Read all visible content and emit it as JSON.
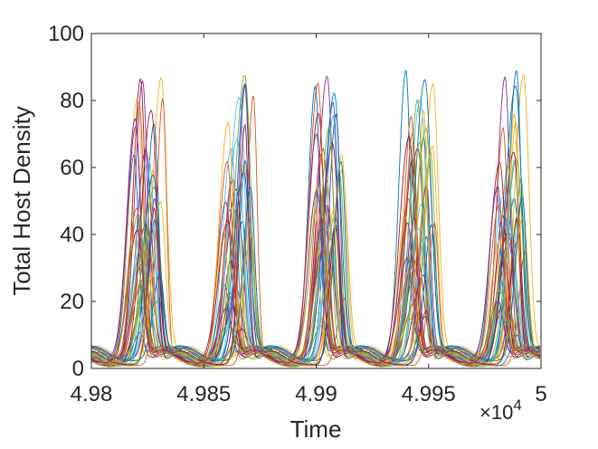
{
  "chart_data": {
    "type": "line",
    "title": "",
    "xlabel": "Time",
    "ylabel": "Total Host Density",
    "x_multiplier_label": "×10",
    "x_multiplier_exponent": "4",
    "xlim": [
      49800,
      50000
    ],
    "ylim": [
      0,
      100
    ],
    "xticks": [
      49800,
      49850,
      49900,
      49950,
      50000
    ],
    "xtick_labels": [
      "4.98",
      "4.985",
      "4.99",
      "4.995",
      "5"
    ],
    "yticks": [
      0,
      20,
      40,
      60,
      80,
      100
    ],
    "ytick_labels": [
      "0",
      "20",
      "40",
      "60",
      "80",
      "100"
    ],
    "grid": false,
    "legend": "none",
    "approx_cycle_period": 40,
    "approx_first_peak_time": 49822,
    "approx_peak_range": [
      8,
      87
    ],
    "approx_series_count": 40,
    "colors": [
      "#0072BD",
      "#D95319",
      "#EDB120",
      "#7E2F8E",
      "#77AC30",
      "#4DBEEE",
      "#A2142F"
    ]
  }
}
